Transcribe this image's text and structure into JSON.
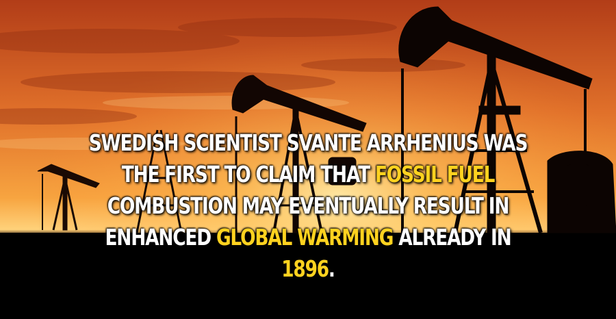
{
  "fact": {
    "line1": "SWEDISH SCIENTIST SVANTE ARRHENIUS WAS",
    "line2_pre": "THE FIRST TO CLAIM THAT ",
    "line2_highlight": "FOSSIL FUEL",
    "line3": "COMBUSTION MAY EVENTUALLY RESULT IN",
    "line4_pre": "ENHANCED ",
    "line4_highlight": "GLOBAL WARMING",
    "line4_post": " ALREADY IN",
    "line5_highlight": "1896",
    "line5_post": "."
  },
  "colors": {
    "highlight": "#ffd21f",
    "text": "#ffffff",
    "sky_top": "#c2461c",
    "sky_mid": "#f08a2a",
    "sky_horizon": "#ffcf70",
    "ground": "#000000"
  },
  "icons": [
    "pumpjack-silhouette",
    "oil-derrick-silhouette"
  ]
}
